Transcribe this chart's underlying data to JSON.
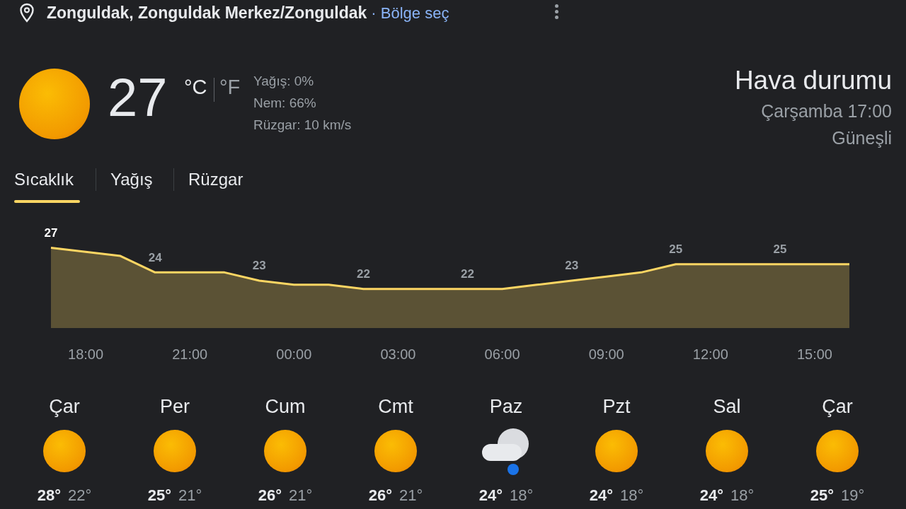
{
  "chart_data": [
    {
      "type": "area",
      "title": "Hava durumu",
      "annotations": [
        "Zonguldak, Zonguldak Merkez/Zonguldak",
        "· Bölge seç",
        "27",
        "°C",
        "°F",
        "Yağış: 0%",
        "Nem: 66%",
        "Rüzgar: 10 km/s",
        "Çarşamba 17:00",
        "Güneşli",
        "Sıcaklık",
        "Yağış",
        "Rüzgar"
      ],
      "categories": [
        null,
        "18:00",
        null,
        null,
        "21:00",
        null,
        null,
        "00:00",
        null,
        null,
        "03:00",
        null,
        null,
        "06:00",
        null,
        null,
        "09:00",
        null,
        null,
        "12:00",
        null,
        null,
        "15:00",
        null
      ],
      "tick_labels": "x",
      "series": [
        {
          "color": "#fdd663",
          "values": [
            27,
            26.5,
            26,
            24,
            24,
            24,
            23,
            22.5,
            22.5,
            22,
            22,
            22,
            22,
            22,
            22.5,
            23,
            23.5,
            24,
            25,
            25,
            25,
            25,
            25,
            25
          ],
          "value_labels": [
            "27",
            null,
            null,
            "24",
            null,
            null,
            "23",
            null,
            null,
            "22",
            null,
            null,
            "22",
            null,
            null,
            "23",
            null,
            null,
            "25",
            null,
            null,
            "25",
            null,
            null
          ]
        }
      ]
    },
    {
      "type": "other",
      "categories": [
        "Çar",
        "Per",
        "Cum",
        "Cmt",
        "Paz",
        "Pzt",
        "Sal",
        "Çar"
      ],
      "annotations": [
        "28°",
        "22°",
        "25°",
        "21°",
        "26°",
        "21°",
        "26°",
        "21°",
        "24°",
        "18°",
        "24°",
        "18°",
        "24°",
        "18°",
        "25°",
        "19°"
      ]
    }
  ]
}
